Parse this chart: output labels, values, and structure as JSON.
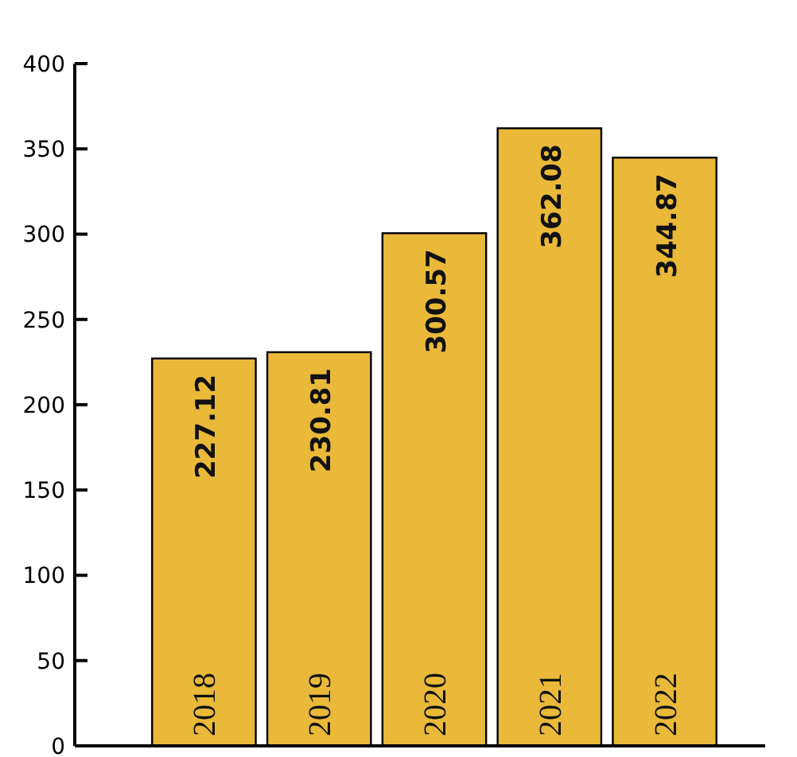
{
  "chart_data": {
    "type": "bar",
    "categories": [
      "2018",
      "2019",
      "2020",
      "2021",
      "2022"
    ],
    "values": [
      227.12,
      230.81,
      300.57,
      362.08,
      344.87
    ],
    "color": "#eab93a",
    "ylim": [
      0,
      400
    ],
    "yticks": [
      0,
      50,
      100,
      150,
      200,
      250,
      300,
      350,
      400
    ],
    "grid": false,
    "data_labels": true
  }
}
